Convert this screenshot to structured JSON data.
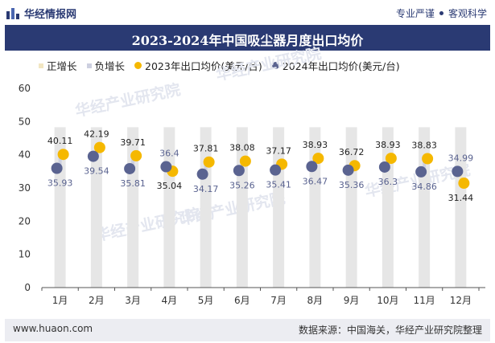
{
  "header": {
    "brand": "华经情报网",
    "tagline_left": "专业严谨",
    "tagline_right": "客观科学"
  },
  "footer": {
    "site": "www.huaon.com",
    "source": "数据来源：中国海关，华经产业研究院整理"
  },
  "watermark": "华经产业研究院",
  "colors": {
    "header_bg": "#2a3a73",
    "positive": "#f2e6c2",
    "negative": "#cdd0e0",
    "series_2023": "#f5b800",
    "series_2024": "#5a6390",
    "bar_bg": "#e6e6e6"
  },
  "chart_data": {
    "type": "line",
    "title": "2023-2024年中国吸尘器月度出口均价",
    "categories": [
      "1月",
      "2月",
      "3月",
      "4月",
      "5月",
      "6月",
      "7月",
      "8月",
      "9月",
      "10月",
      "11月",
      "12月"
    ],
    "ylim": [
      0,
      60
    ],
    "yticks": [
      0,
      10,
      20,
      30,
      40,
      50,
      60
    ],
    "grid": false,
    "legend": [
      "正增长",
      "负增长",
      "2023年出口均价(美元/台)",
      "2024年出口均价(美元/台)"
    ],
    "series": [
      {
        "name": "2023年出口均价(美元/台)",
        "values": [
          40.11,
          42.19,
          39.71,
          35.04,
          37.81,
          38.08,
          37.17,
          38.93,
          36.72,
          38.93,
          38.83,
          31.44
        ]
      },
      {
        "name": "2024年出口均价(美元/台)",
        "values": [
          35.93,
          39.54,
          35.81,
          36.4,
          34.17,
          35.26,
          35.41,
          36.47,
          35.36,
          36.3,
          34.86,
          34.99
        ]
      }
    ]
  }
}
